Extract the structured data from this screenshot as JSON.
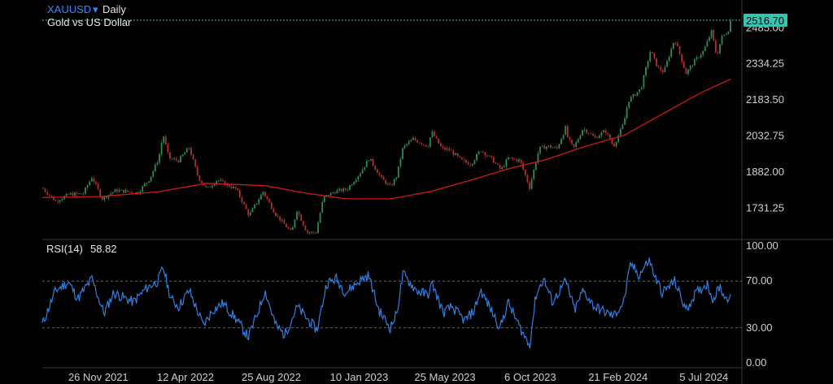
{
  "header": {
    "symbol": "XAUUSD",
    "dropdown_icon": "caret-down-icon",
    "interval": "Daily",
    "description": "Gold vs US Dollar"
  },
  "colors": {
    "background": "#000000",
    "rsi_line": "#2f7fe0",
    "ma_line": "#d01818",
    "candle_up": "#2e8b57",
    "candle_down": "#b03030",
    "last_price_tag": "#35c6b3",
    "grid": "#3a3a3a"
  },
  "chart_data": [
    {
      "type": "candlestick",
      "title": "XAUUSD Daily",
      "subtitle": "Gold vs US Dollar",
      "y_ticks": [
        "2485.00",
        "2334.25",
        "2183.50",
        "2032.75",
        "1882.00",
        "1731.25"
      ],
      "ylim": [
        1600,
        2530
      ],
      "last_price": "2516.70",
      "x_ticks": [
        "26 Nov 2021",
        "12 Apr 2022",
        "25 Aug 2022",
        "10 Jan 2023",
        "25 May 2023",
        "6 Oct 2023",
        "21 Feb 2024",
        "5 Jul 2024"
      ],
      "xlim": [
        "2021-08-30",
        "2024-08-12"
      ],
      "close_points": [
        [
          "2021-08-30",
          1815
        ],
        [
          "2021-09-20",
          1760
        ],
        [
          "2021-10-12",
          1790
        ],
        [
          "2021-11-02",
          1790
        ],
        [
          "2021-11-16",
          1862
        ],
        [
          "2021-12-02",
          1770
        ],
        [
          "2021-12-23",
          1805
        ],
        [
          "2022-01-10",
          1800
        ],
        [
          "2022-01-27",
          1795
        ],
        [
          "2022-02-15",
          1855
        ],
        [
          "2022-03-01",
          1940
        ],
        [
          "2022-03-08",
          2040
        ],
        [
          "2022-03-17",
          1940
        ],
        [
          "2022-04-01",
          1930
        ],
        [
          "2022-04-18",
          1985
        ],
        [
          "2022-05-02",
          1860
        ],
        [
          "2022-05-16",
          1810
        ],
        [
          "2022-06-01",
          1850
        ],
        [
          "2022-06-15",
          1830
        ],
        [
          "2022-07-01",
          1810
        ],
        [
          "2022-07-21",
          1700
        ],
        [
          "2022-08-12",
          1800
        ],
        [
          "2022-09-01",
          1705
        ],
        [
          "2022-09-26",
          1628
        ],
        [
          "2022-10-04",
          1725
        ],
        [
          "2022-10-20",
          1630
        ],
        [
          "2022-11-03",
          1628
        ],
        [
          "2022-11-15",
          1775
        ],
        [
          "2022-12-02",
          1800
        ],
        [
          "2022-12-22",
          1810
        ],
        [
          "2023-01-12",
          1880
        ],
        [
          "2023-01-26",
          1940
        ],
        [
          "2023-02-14",
          1855
        ],
        [
          "2023-02-28",
          1820
        ],
        [
          "2023-03-10",
          1865
        ],
        [
          "2023-03-20",
          1985
        ],
        [
          "2023-04-05",
          2020
        ],
        [
          "2023-04-28",
          1990
        ],
        [
          "2023-05-04",
          2050
        ],
        [
          "2023-05-20",
          1980
        ],
        [
          "2023-06-01",
          1975
        ],
        [
          "2023-06-20",
          1930
        ],
        [
          "2023-07-05",
          1915
        ],
        [
          "2023-07-20",
          1975
        ],
        [
          "2023-08-07",
          1935
        ],
        [
          "2023-08-21",
          1890
        ],
        [
          "2023-09-01",
          1940
        ],
        [
          "2023-09-20",
          1930
        ],
        [
          "2023-10-05",
          1818
        ],
        [
          "2023-10-20",
          1980
        ],
        [
          "2023-11-02",
          1990
        ],
        [
          "2023-11-17",
          1980
        ],
        [
          "2023-12-01",
          2070
        ],
        [
          "2023-12-04",
          2025
        ],
        [
          "2023-12-13",
          1980
        ],
        [
          "2023-12-28",
          2065
        ],
        [
          "2024-01-16",
          2025
        ],
        [
          "2024-02-01",
          2055
        ],
        [
          "2024-02-14",
          1990
        ],
        [
          "2024-03-01",
          2085
        ],
        [
          "2024-03-08",
          2180
        ],
        [
          "2024-03-28",
          2230
        ],
        [
          "2024-04-12",
          2390
        ],
        [
          "2024-04-23",
          2320
        ],
        [
          "2024-05-03",
          2300
        ],
        [
          "2024-05-20",
          2440
        ],
        [
          "2024-06-07",
          2295
        ],
        [
          "2024-06-20",
          2345
        ],
        [
          "2024-07-05",
          2390
        ],
        [
          "2024-07-17",
          2470
        ],
        [
          "2024-07-25",
          2365
        ],
        [
          "2024-08-02",
          2445
        ],
        [
          "2024-08-12",
          2470
        ],
        [
          "2024-08-16",
          2516.7
        ]
      ],
      "ma_points": [
        [
          "2021-08-30",
          1775
        ],
        [
          "2021-12-01",
          1780
        ],
        [
          "2022-03-01",
          1800
        ],
        [
          "2022-05-15",
          1835
        ],
        [
          "2022-08-15",
          1825
        ],
        [
          "2022-10-15",
          1795
        ],
        [
          "2022-12-20",
          1770
        ],
        [
          "2023-03-01",
          1770
        ],
        [
          "2023-05-01",
          1800
        ],
        [
          "2023-07-01",
          1845
        ],
        [
          "2023-09-01",
          1895
        ],
        [
          "2023-11-01",
          1935
        ],
        [
          "2024-01-01",
          1990
        ],
        [
          "2024-03-01",
          2035
        ],
        [
          "2024-05-01",
          2125
        ],
        [
          "2024-07-01",
          2215
        ],
        [
          "2024-08-16",
          2270
        ]
      ]
    },
    {
      "type": "line",
      "title": "RSI(14)",
      "value_label": "58.82",
      "y_ticks": [
        "100.00",
        "70.00",
        "30.00",
        "0.00"
      ],
      "ylim": [
        0,
        100
      ],
      "levels": [
        70,
        30
      ],
      "rsi_points": [
        [
          "2021-08-30",
          33
        ],
        [
          "2021-09-20",
          62
        ],
        [
          "2021-10-10",
          69
        ],
        [
          "2021-10-25",
          55
        ],
        [
          "2021-11-16",
          72
        ],
        [
          "2021-12-05",
          42
        ],
        [
          "2021-12-20",
          60
        ],
        [
          "2022-01-20",
          52
        ],
        [
          "2022-02-10",
          64
        ],
        [
          "2022-02-28",
          70
        ],
        [
          "2022-03-08",
          82
        ],
        [
          "2022-03-20",
          55
        ],
        [
          "2022-04-01",
          48
        ],
        [
          "2022-04-18",
          62
        ],
        [
          "2022-05-10",
          32
        ],
        [
          "2022-05-25",
          45
        ],
        [
          "2022-06-10",
          51
        ],
        [
          "2022-06-30",
          38
        ],
        [
          "2022-07-20",
          22
        ],
        [
          "2022-08-05",
          45
        ],
        [
          "2022-08-15",
          62
        ],
        [
          "2022-09-01",
          32
        ],
        [
          "2022-09-15",
          24
        ],
        [
          "2022-10-05",
          48
        ],
        [
          "2022-10-20",
          38
        ],
        [
          "2022-11-05",
          28
        ],
        [
          "2022-11-20",
          68
        ],
        [
          "2022-12-05",
          72
        ],
        [
          "2022-12-20",
          60
        ],
        [
          "2023-01-10",
          70
        ],
        [
          "2023-01-25",
          75
        ],
        [
          "2023-02-10",
          45
        ],
        [
          "2023-02-28",
          30
        ],
        [
          "2023-03-10",
          42
        ],
        [
          "2023-03-20",
          76
        ],
        [
          "2023-04-10",
          62
        ],
        [
          "2023-04-28",
          58
        ],
        [
          "2023-05-05",
          68
        ],
        [
          "2023-05-22",
          43
        ],
        [
          "2023-06-05",
          48
        ],
        [
          "2023-06-25",
          36
        ],
        [
          "2023-07-10",
          45
        ],
        [
          "2023-07-20",
          62
        ],
        [
          "2023-08-01",
          50
        ],
        [
          "2023-08-20",
          30
        ],
        [
          "2023-09-01",
          52
        ],
        [
          "2023-09-20",
          30
        ],
        [
          "2023-10-05",
          15
        ],
        [
          "2023-10-15",
          58
        ],
        [
          "2023-10-27",
          72
        ],
        [
          "2023-11-10",
          52
        ],
        [
          "2023-12-01",
          70
        ],
        [
          "2023-12-15",
          45
        ],
        [
          "2023-12-28",
          62
        ],
        [
          "2024-01-15",
          48
        ],
        [
          "2024-02-14",
          40
        ],
        [
          "2024-03-01",
          52
        ],
        [
          "2024-03-12",
          85
        ],
        [
          "2024-03-25",
          75
        ],
        [
          "2024-04-10",
          88
        ],
        [
          "2024-04-20",
          72
        ],
        [
          "2024-05-01",
          60
        ],
        [
          "2024-05-20",
          70
        ],
        [
          "2024-06-07",
          45
        ],
        [
          "2024-06-20",
          58
        ],
        [
          "2024-07-10",
          68
        ],
        [
          "2024-07-20",
          54
        ],
        [
          "2024-07-30",
          66
        ],
        [
          "2024-08-08",
          55
        ],
        [
          "2024-08-16",
          58.82
        ]
      ]
    }
  ]
}
